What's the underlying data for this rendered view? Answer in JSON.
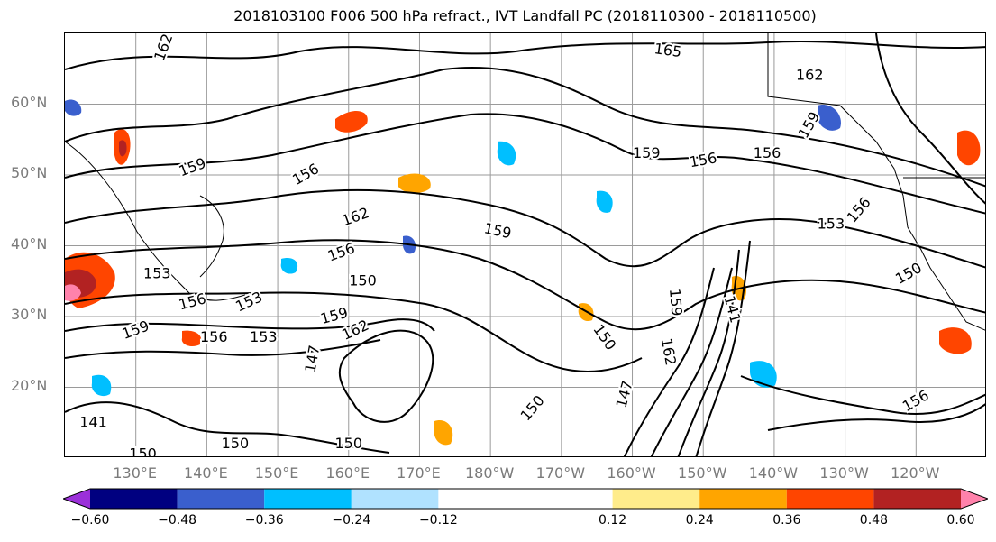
{
  "title": "2018103100 F006 500 hPa refract., IVT Landfall PC (2018110300 - 2018110500)",
  "map": {
    "lat_labels": [
      {
        "text": "60°N",
        "lat": 60
      },
      {
        "text": "50°N",
        "lat": 50
      },
      {
        "text": "40°N",
        "lat": 40
      },
      {
        "text": "30°N",
        "lat": 30
      },
      {
        "text": "20°N",
        "lat": 20
      }
    ],
    "lon_labels": [
      {
        "text": "130°E",
        "lon": 130
      },
      {
        "text": "140°E",
        "lon": 140
      },
      {
        "text": "150°E",
        "lon": 150
      },
      {
        "text": "160°E",
        "lon": 160
      },
      {
        "text": "170°E",
        "lon": 170
      },
      {
        "text": "180°W",
        "lon": 180
      },
      {
        "text": "170°W",
        "lon": 190
      },
      {
        "text": "160°W",
        "lon": 200
      },
      {
        "text": "150°W",
        "lon": 210
      },
      {
        "text": "140°W",
        "lon": 220
      },
      {
        "text": "130°W",
        "lon": 230
      },
      {
        "text": "120°W",
        "lon": 240
      }
    ],
    "lon_range": [
      120,
      250
    ],
    "lat_range": [
      10,
      70
    ],
    "grid": true,
    "contour_labels": [
      {
        "text": "165",
        "lon": 205,
        "lat": 67.5,
        "angle": 8
      },
      {
        "text": "162",
        "lon": 225,
        "lat": 64,
        "angle": 0
      },
      {
        "text": "162",
        "lon": 134,
        "lat": 68,
        "angle": -70
      },
      {
        "text": "159",
        "lon": 202,
        "lat": 53,
        "angle": 0
      },
      {
        "text": "156",
        "lon": 210,
        "lat": 52,
        "angle": -10
      },
      {
        "text": "156",
        "lon": 219,
        "lat": 53,
        "angle": 0
      },
      {
        "text": "159",
        "lon": 138,
        "lat": 51,
        "angle": -20
      },
      {
        "text": "156",
        "lon": 154,
        "lat": 50,
        "angle": -30
      },
      {
        "text": "162",
        "lon": 161,
        "lat": 44,
        "angle": -20
      },
      {
        "text": "159",
        "lon": 181,
        "lat": 42,
        "angle": 12
      },
      {
        "text": "156",
        "lon": 159,
        "lat": 39,
        "angle": -20
      },
      {
        "text": "150",
        "lon": 162,
        "lat": 35,
        "angle": 0
      },
      {
        "text": "153",
        "lon": 133,
        "lat": 36,
        "angle": 0
      },
      {
        "text": "156",
        "lon": 138,
        "lat": 32,
        "angle": -15
      },
      {
        "text": "153",
        "lon": 146,
        "lat": 32,
        "angle": -25
      },
      {
        "text": "159",
        "lon": 158,
        "lat": 30,
        "angle": -15
      },
      {
        "text": "162",
        "lon": 161,
        "lat": 28,
        "angle": -25
      },
      {
        "text": "159",
        "lon": 130,
        "lat": 28,
        "angle": -20
      },
      {
        "text": "156",
        "lon": 141,
        "lat": 27,
        "angle": 0
      },
      {
        "text": "153",
        "lon": 148,
        "lat": 27,
        "angle": 0
      },
      {
        "text": "147",
        "lon": 155,
        "lat": 24,
        "angle": -80
      },
      {
        "text": "150",
        "lon": 196,
        "lat": 27,
        "angle": 55
      },
      {
        "text": "150",
        "lon": 186,
        "lat": 17,
        "angle": -50
      },
      {
        "text": "147",
        "lon": 199,
        "lat": 19,
        "angle": -75
      },
      {
        "text": "159",
        "lon": 206,
        "lat": 32,
        "angle": 85
      },
      {
        "text": "162",
        "lon": 205,
        "lat": 25,
        "angle": 80
      },
      {
        "text": "141",
        "lon": 214,
        "lat": 31,
        "angle": 75
      },
      {
        "text": "153",
        "lon": 228,
        "lat": 43,
        "angle": 0
      },
      {
        "text": "156",
        "lon": 232,
        "lat": 45,
        "angle": -50
      },
      {
        "text": "150",
        "lon": 239,
        "lat": 36,
        "angle": -30
      },
      {
        "text": "159",
        "lon": 225,
        "lat": 57,
        "angle": -60
      },
      {
        "text": "141",
        "lon": 124,
        "lat": 15,
        "angle": 0
      },
      {
        "text": "150",
        "lon": 131,
        "lat": 10.5,
        "angle": 0
      },
      {
        "text": "150",
        "lon": 144,
        "lat": 12,
        "angle": 0
      },
      {
        "text": "150",
        "lon": 160,
        "lat": 12,
        "angle": 0
      },
      {
        "text": "156",
        "lon": 240,
        "lat": 18,
        "angle": -30
      }
    ]
  },
  "colorbar": {
    "colors": [
      "#9b30d9",
      "#000080",
      "#3a5fcd",
      "#00bfff",
      "#b0e2ff",
      "#ffffff",
      "#ffec8b",
      "#ffa500",
      "#ff4500",
      "#b22222",
      "#ff82ab"
    ],
    "bounds": [
      -0.72,
      -0.6,
      -0.48,
      -0.36,
      -0.24,
      -0.12,
      0.12,
      0.24,
      0.36,
      0.48,
      0.6,
      0.72
    ],
    "labels": [
      "−0.60",
      "−0.48",
      "−0.36",
      "−0.24",
      "−0.12",
      "0.12",
      "0.24",
      "0.36",
      "0.48",
      "0.60"
    ]
  }
}
